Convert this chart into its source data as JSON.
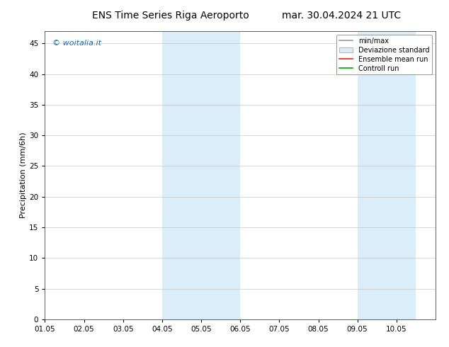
{
  "title_left": "ENS Time Series Riga Aeroportto",
  "title_left_text": "ENS Time Series Riga Aeroporto",
  "title_right": "mar. 30.04.2024 21 UTC",
  "ylabel": "Precipitation (mm/6h)",
  "watermark": "© woitalia.it",
  "watermark_color": "#1a6ab5",
  "ylim": [
    0,
    47
  ],
  "yticks": [
    0,
    5,
    10,
    15,
    20,
    25,
    30,
    35,
    40,
    45
  ],
  "xlim": [
    0,
    10
  ],
  "xtick_labels": [
    "01.05",
    "02.05",
    "03.05",
    "04.05",
    "05.05",
    "06.05",
    "07.05",
    "08.05",
    "09.05",
    "10.05"
  ],
  "xtick_positions": [
    0,
    1,
    2,
    3,
    4,
    5,
    6,
    7,
    8,
    9
  ],
  "shade_bands": [
    {
      "xmin": 3.0,
      "xmax": 5.0,
      "color": "#daedf8"
    },
    {
      "xmin": 8.0,
      "xmax": 9.5,
      "color": "#daedf8"
    }
  ],
  "bg_color": "#ffffff",
  "plot_bg_color": "#ffffff",
  "legend_labels": [
    "min/max",
    "Deviazione standard",
    "Ensemble mean run",
    "Controll run"
  ],
  "grid_color": "#bbbbbb",
  "title_fontsize": 10,
  "tick_fontsize": 7.5,
  "ylabel_fontsize": 8,
  "watermark_fontsize": 8,
  "legend_fontsize": 7
}
